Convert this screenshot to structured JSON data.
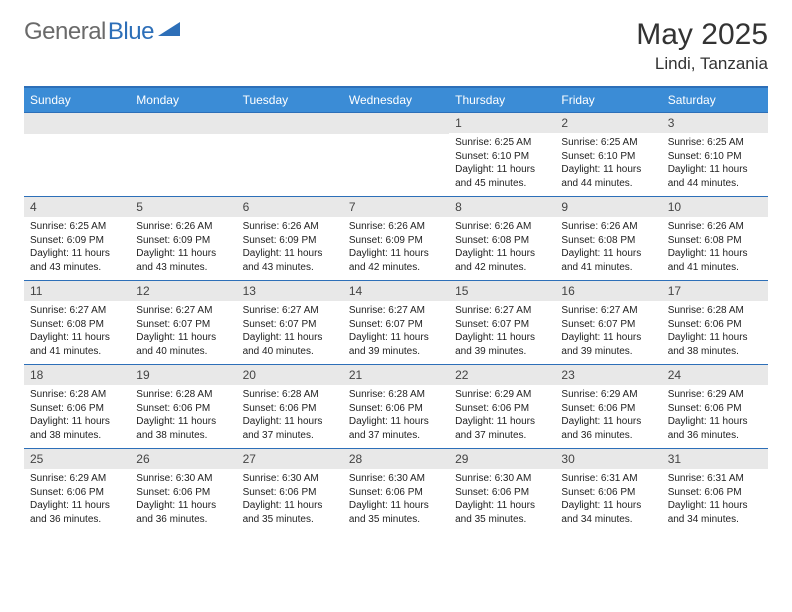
{
  "header": {
    "logo_text_1": "General",
    "logo_text_2": "Blue",
    "month_title": "May 2025",
    "location": "Lindi, Tanzania"
  },
  "colors": {
    "header_bg": "#3b8cd6",
    "header_text": "#ffffff",
    "daynum_bg": "#e8e8e8",
    "border": "#2d6fb8",
    "logo_gray": "#6a6a6a",
    "logo_blue": "#2d6fb8",
    "body_text": "#222222"
  },
  "day_names": [
    "Sunday",
    "Monday",
    "Tuesday",
    "Wednesday",
    "Thursday",
    "Friday",
    "Saturday"
  ],
  "weeks": [
    [
      {
        "n": "",
        "sr": "",
        "ss": "",
        "dl": ""
      },
      {
        "n": "",
        "sr": "",
        "ss": "",
        "dl": ""
      },
      {
        "n": "",
        "sr": "",
        "ss": "",
        "dl": ""
      },
      {
        "n": "",
        "sr": "",
        "ss": "",
        "dl": ""
      },
      {
        "n": "1",
        "sr": "Sunrise: 6:25 AM",
        "ss": "Sunset: 6:10 PM",
        "dl": "Daylight: 11 hours and 45 minutes."
      },
      {
        "n": "2",
        "sr": "Sunrise: 6:25 AM",
        "ss": "Sunset: 6:10 PM",
        "dl": "Daylight: 11 hours and 44 minutes."
      },
      {
        "n": "3",
        "sr": "Sunrise: 6:25 AM",
        "ss": "Sunset: 6:10 PM",
        "dl": "Daylight: 11 hours and 44 minutes."
      }
    ],
    [
      {
        "n": "4",
        "sr": "Sunrise: 6:25 AM",
        "ss": "Sunset: 6:09 PM",
        "dl": "Daylight: 11 hours and 43 minutes."
      },
      {
        "n": "5",
        "sr": "Sunrise: 6:26 AM",
        "ss": "Sunset: 6:09 PM",
        "dl": "Daylight: 11 hours and 43 minutes."
      },
      {
        "n": "6",
        "sr": "Sunrise: 6:26 AM",
        "ss": "Sunset: 6:09 PM",
        "dl": "Daylight: 11 hours and 43 minutes."
      },
      {
        "n": "7",
        "sr": "Sunrise: 6:26 AM",
        "ss": "Sunset: 6:09 PM",
        "dl": "Daylight: 11 hours and 42 minutes."
      },
      {
        "n": "8",
        "sr": "Sunrise: 6:26 AM",
        "ss": "Sunset: 6:08 PM",
        "dl": "Daylight: 11 hours and 42 minutes."
      },
      {
        "n": "9",
        "sr": "Sunrise: 6:26 AM",
        "ss": "Sunset: 6:08 PM",
        "dl": "Daylight: 11 hours and 41 minutes."
      },
      {
        "n": "10",
        "sr": "Sunrise: 6:26 AM",
        "ss": "Sunset: 6:08 PM",
        "dl": "Daylight: 11 hours and 41 minutes."
      }
    ],
    [
      {
        "n": "11",
        "sr": "Sunrise: 6:27 AM",
        "ss": "Sunset: 6:08 PM",
        "dl": "Daylight: 11 hours and 41 minutes."
      },
      {
        "n": "12",
        "sr": "Sunrise: 6:27 AM",
        "ss": "Sunset: 6:07 PM",
        "dl": "Daylight: 11 hours and 40 minutes."
      },
      {
        "n": "13",
        "sr": "Sunrise: 6:27 AM",
        "ss": "Sunset: 6:07 PM",
        "dl": "Daylight: 11 hours and 40 minutes."
      },
      {
        "n": "14",
        "sr": "Sunrise: 6:27 AM",
        "ss": "Sunset: 6:07 PM",
        "dl": "Daylight: 11 hours and 39 minutes."
      },
      {
        "n": "15",
        "sr": "Sunrise: 6:27 AM",
        "ss": "Sunset: 6:07 PM",
        "dl": "Daylight: 11 hours and 39 minutes."
      },
      {
        "n": "16",
        "sr": "Sunrise: 6:27 AM",
        "ss": "Sunset: 6:07 PM",
        "dl": "Daylight: 11 hours and 39 minutes."
      },
      {
        "n": "17",
        "sr": "Sunrise: 6:28 AM",
        "ss": "Sunset: 6:06 PM",
        "dl": "Daylight: 11 hours and 38 minutes."
      }
    ],
    [
      {
        "n": "18",
        "sr": "Sunrise: 6:28 AM",
        "ss": "Sunset: 6:06 PM",
        "dl": "Daylight: 11 hours and 38 minutes."
      },
      {
        "n": "19",
        "sr": "Sunrise: 6:28 AM",
        "ss": "Sunset: 6:06 PM",
        "dl": "Daylight: 11 hours and 38 minutes."
      },
      {
        "n": "20",
        "sr": "Sunrise: 6:28 AM",
        "ss": "Sunset: 6:06 PM",
        "dl": "Daylight: 11 hours and 37 minutes."
      },
      {
        "n": "21",
        "sr": "Sunrise: 6:28 AM",
        "ss": "Sunset: 6:06 PM",
        "dl": "Daylight: 11 hours and 37 minutes."
      },
      {
        "n": "22",
        "sr": "Sunrise: 6:29 AM",
        "ss": "Sunset: 6:06 PM",
        "dl": "Daylight: 11 hours and 37 minutes."
      },
      {
        "n": "23",
        "sr": "Sunrise: 6:29 AM",
        "ss": "Sunset: 6:06 PM",
        "dl": "Daylight: 11 hours and 36 minutes."
      },
      {
        "n": "24",
        "sr": "Sunrise: 6:29 AM",
        "ss": "Sunset: 6:06 PM",
        "dl": "Daylight: 11 hours and 36 minutes."
      }
    ],
    [
      {
        "n": "25",
        "sr": "Sunrise: 6:29 AM",
        "ss": "Sunset: 6:06 PM",
        "dl": "Daylight: 11 hours and 36 minutes."
      },
      {
        "n": "26",
        "sr": "Sunrise: 6:30 AM",
        "ss": "Sunset: 6:06 PM",
        "dl": "Daylight: 11 hours and 36 minutes."
      },
      {
        "n": "27",
        "sr": "Sunrise: 6:30 AM",
        "ss": "Sunset: 6:06 PM",
        "dl": "Daylight: 11 hours and 35 minutes."
      },
      {
        "n": "28",
        "sr": "Sunrise: 6:30 AM",
        "ss": "Sunset: 6:06 PM",
        "dl": "Daylight: 11 hours and 35 minutes."
      },
      {
        "n": "29",
        "sr": "Sunrise: 6:30 AM",
        "ss": "Sunset: 6:06 PM",
        "dl": "Daylight: 11 hours and 35 minutes."
      },
      {
        "n": "30",
        "sr": "Sunrise: 6:31 AM",
        "ss": "Sunset: 6:06 PM",
        "dl": "Daylight: 11 hours and 34 minutes."
      },
      {
        "n": "31",
        "sr": "Sunrise: 6:31 AM",
        "ss": "Sunset: 6:06 PM",
        "dl": "Daylight: 11 hours and 34 minutes."
      }
    ]
  ]
}
